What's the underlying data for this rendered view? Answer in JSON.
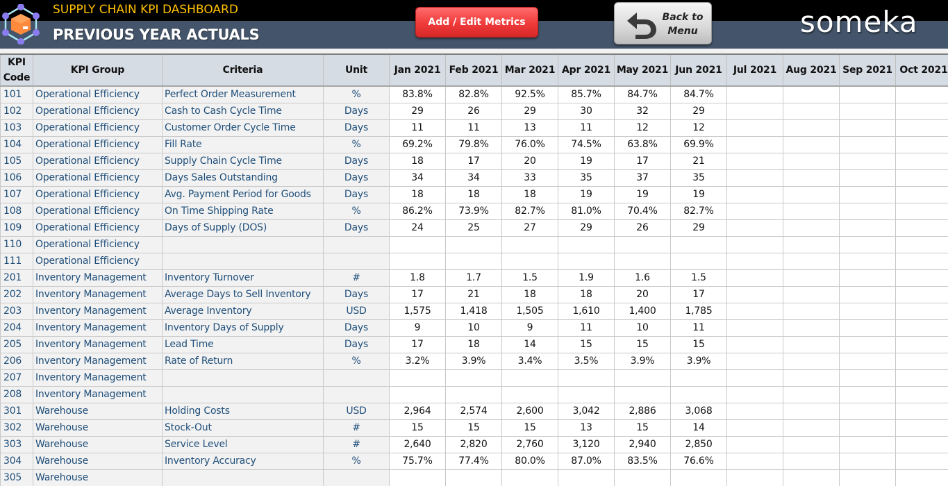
{
  "header": {
    "app_title": "SUPPLY CHAIN KPI DASHBOARD",
    "page_title": "PREVIOUS YEAR ACTUALS",
    "add_edit_button": "Add / Edit Metrics",
    "back_button_line1": "Back to",
    "back_button_line2": "Menu",
    "brand": "someka",
    "colors": {
      "top_bar": "#000000",
      "title_bar": "#44546a",
      "app_title": "#ffc000",
      "add_button": "#f03a3a"
    }
  },
  "table": {
    "columns": {
      "code": "KPI Code",
      "code_line1": "KPI",
      "code_line2": "Code",
      "group": "KPI Group",
      "criteria": "Criteria",
      "unit": "Unit",
      "months": [
        "Jan 2021",
        "Feb 2021",
        "Mar 2021",
        "Apr 2021",
        "May 2021",
        "Jun 2021",
        "Jul 2021",
        "Aug 2021",
        "Sep 2021",
        "Oct 2021"
      ]
    },
    "rows": [
      {
        "code": "101",
        "group": "Operational Efficiency",
        "criteria": "Perfect Order Measurement",
        "unit": "%",
        "values": [
          "83.8%",
          "82.8%",
          "92.5%",
          "85.7%",
          "84.7%",
          "84.7%",
          "",
          "",
          "",
          ""
        ]
      },
      {
        "code": "102",
        "group": "Operational Efficiency",
        "criteria": "Cash to Cash Cycle Time",
        "unit": "Days",
        "values": [
          "29",
          "26",
          "29",
          "30",
          "32",
          "29",
          "",
          "",
          "",
          ""
        ]
      },
      {
        "code": "103",
        "group": "Operational Efficiency",
        "criteria": "Customer Order Cycle Time",
        "unit": "Days",
        "values": [
          "11",
          "11",
          "13",
          "11",
          "12",
          "12",
          "",
          "",
          "",
          ""
        ]
      },
      {
        "code": "104",
        "group": "Operational Efficiency",
        "criteria": "Fill Rate",
        "unit": "%",
        "values": [
          "69.2%",
          "79.8%",
          "76.0%",
          "74.5%",
          "63.8%",
          "69.9%",
          "",
          "",
          "",
          ""
        ]
      },
      {
        "code": "105",
        "group": "Operational Efficiency",
        "criteria": "Supply Chain Cycle Time",
        "unit": "Days",
        "values": [
          "18",
          "17",
          "20",
          "19",
          "17",
          "21",
          "",
          "",
          "",
          ""
        ]
      },
      {
        "code": "106",
        "group": "Operational Efficiency",
        "criteria": "Days Sales Outstanding",
        "unit": "Days",
        "values": [
          "34",
          "34",
          "33",
          "35",
          "37",
          "35",
          "",
          "",
          "",
          ""
        ]
      },
      {
        "code": "107",
        "group": "Operational Efficiency",
        "criteria": "Avg. Payment Period for Goods",
        "unit": "Days",
        "values": [
          "18",
          "18",
          "18",
          "19",
          "19",
          "19",
          "",
          "",
          "",
          ""
        ]
      },
      {
        "code": "108",
        "group": "Operational Efficiency",
        "criteria": "On Time Shipping Rate",
        "unit": "%",
        "values": [
          "86.2%",
          "73.9%",
          "82.7%",
          "81.0%",
          "70.4%",
          "82.7%",
          "",
          "",
          "",
          ""
        ]
      },
      {
        "code": "109",
        "group": "Operational Efficiency",
        "criteria": "Days of Supply (DOS)",
        "unit": "Days",
        "values": [
          "24",
          "25",
          "27",
          "29",
          "26",
          "29",
          "",
          "",
          "",
          ""
        ]
      },
      {
        "code": "110",
        "group": "Operational Efficiency",
        "criteria": "",
        "unit": "",
        "values": [
          "",
          "",
          "",
          "",
          "",
          "",
          "",
          "",
          "",
          ""
        ]
      },
      {
        "code": "111",
        "group": "Operational Efficiency",
        "criteria": "",
        "unit": "",
        "values": [
          "",
          "",
          "",
          "",
          "",
          "",
          "",
          "",
          "",
          ""
        ]
      },
      {
        "code": "201",
        "group": "Inventory Management",
        "criteria": "Inventory Turnover",
        "unit": "#",
        "values": [
          "1.8",
          "1.7",
          "1.5",
          "1.9",
          "1.6",
          "1.5",
          "",
          "",
          "",
          ""
        ]
      },
      {
        "code": "202",
        "group": "Inventory Management",
        "criteria": "Average Days to Sell Inventory",
        "unit": "Days",
        "values": [
          "17",
          "21",
          "18",
          "18",
          "20",
          "17",
          "",
          "",
          "",
          ""
        ]
      },
      {
        "code": "203",
        "group": "Inventory Management",
        "criteria": "Average Inventory",
        "unit": "USD",
        "values": [
          "1,575",
          "1,418",
          "1,505",
          "1,610",
          "1,400",
          "1,785",
          "",
          "",
          "",
          ""
        ]
      },
      {
        "code": "204",
        "group": "Inventory Management",
        "criteria": "Inventory Days of Supply",
        "unit": "Days",
        "values": [
          "9",
          "10",
          "9",
          "11",
          "10",
          "11",
          "",
          "",
          "",
          ""
        ]
      },
      {
        "code": "205",
        "group": "Inventory Management",
        "criteria": "Lead Time",
        "unit": "Days",
        "values": [
          "17",
          "18",
          "14",
          "15",
          "15",
          "15",
          "",
          "",
          "",
          ""
        ]
      },
      {
        "code": "206",
        "group": "Inventory Management",
        "criteria": "Rate of Return",
        "unit": "%",
        "values": [
          "3.2%",
          "3.9%",
          "3.4%",
          "3.5%",
          "3.9%",
          "3.9%",
          "",
          "",
          "",
          ""
        ]
      },
      {
        "code": "207",
        "group": "Inventory Management",
        "criteria": "",
        "unit": "",
        "values": [
          "",
          "",
          "",
          "",
          "",
          "",
          "",
          "",
          "",
          ""
        ]
      },
      {
        "code": "208",
        "group": "Inventory Management",
        "criteria": "",
        "unit": "",
        "values": [
          "",
          "",
          "",
          "",
          "",
          "",
          "",
          "",
          "",
          ""
        ]
      },
      {
        "code": "301",
        "group": "Warehouse",
        "criteria": "Holding Costs",
        "unit": "USD",
        "values": [
          "2,964",
          "2,574",
          "2,600",
          "3,042",
          "2,886",
          "3,068",
          "",
          "",
          "",
          ""
        ]
      },
      {
        "code": "302",
        "group": "Warehouse",
        "criteria": "Stock-Out",
        "unit": "#",
        "values": [
          "15",
          "15",
          "15",
          "13",
          "15",
          "14",
          "",
          "",
          "",
          ""
        ]
      },
      {
        "code": "303",
        "group": "Warehouse",
        "criteria": "Service Level",
        "unit": "#",
        "values": [
          "2,640",
          "2,820",
          "2,760",
          "3,120",
          "2,940",
          "2,850",
          "",
          "",
          "",
          ""
        ]
      },
      {
        "code": "304",
        "group": "Warehouse",
        "criteria": "Inventory Accuracy",
        "unit": "%",
        "values": [
          "75.7%",
          "77.4%",
          "80.0%",
          "87.0%",
          "83.5%",
          "76.6%",
          "",
          "",
          "",
          ""
        ]
      },
      {
        "code": "305",
        "group": "Warehouse",
        "criteria": "",
        "unit": "",
        "values": [
          "",
          "",
          "",
          "",
          "",
          "",
          "",
          "",
          "",
          ""
        ]
      }
    ]
  }
}
